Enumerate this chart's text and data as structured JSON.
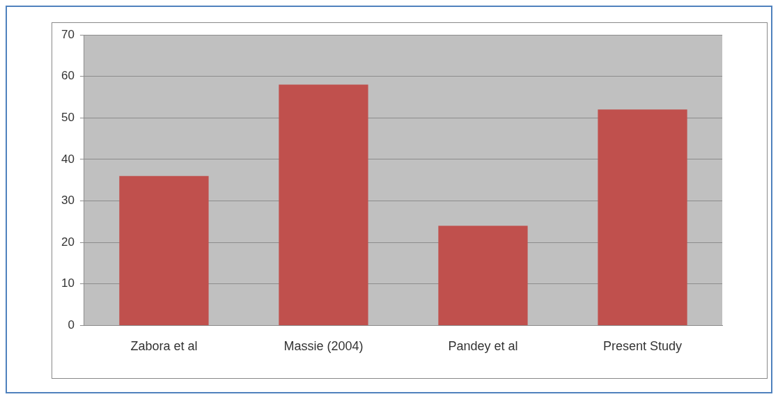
{
  "chart_data": {
    "type": "bar",
    "categories": [
      "Zabora et al",
      "Massie (2004)",
      "Pandey et al",
      "Present Study"
    ],
    "values": [
      36,
      58,
      24,
      52
    ],
    "color": "#c0504d",
    "ylim": [
      0,
      70
    ],
    "yticks": [
      0,
      10,
      20,
      30,
      40,
      50,
      60,
      70
    ],
    "grid": "y"
  }
}
